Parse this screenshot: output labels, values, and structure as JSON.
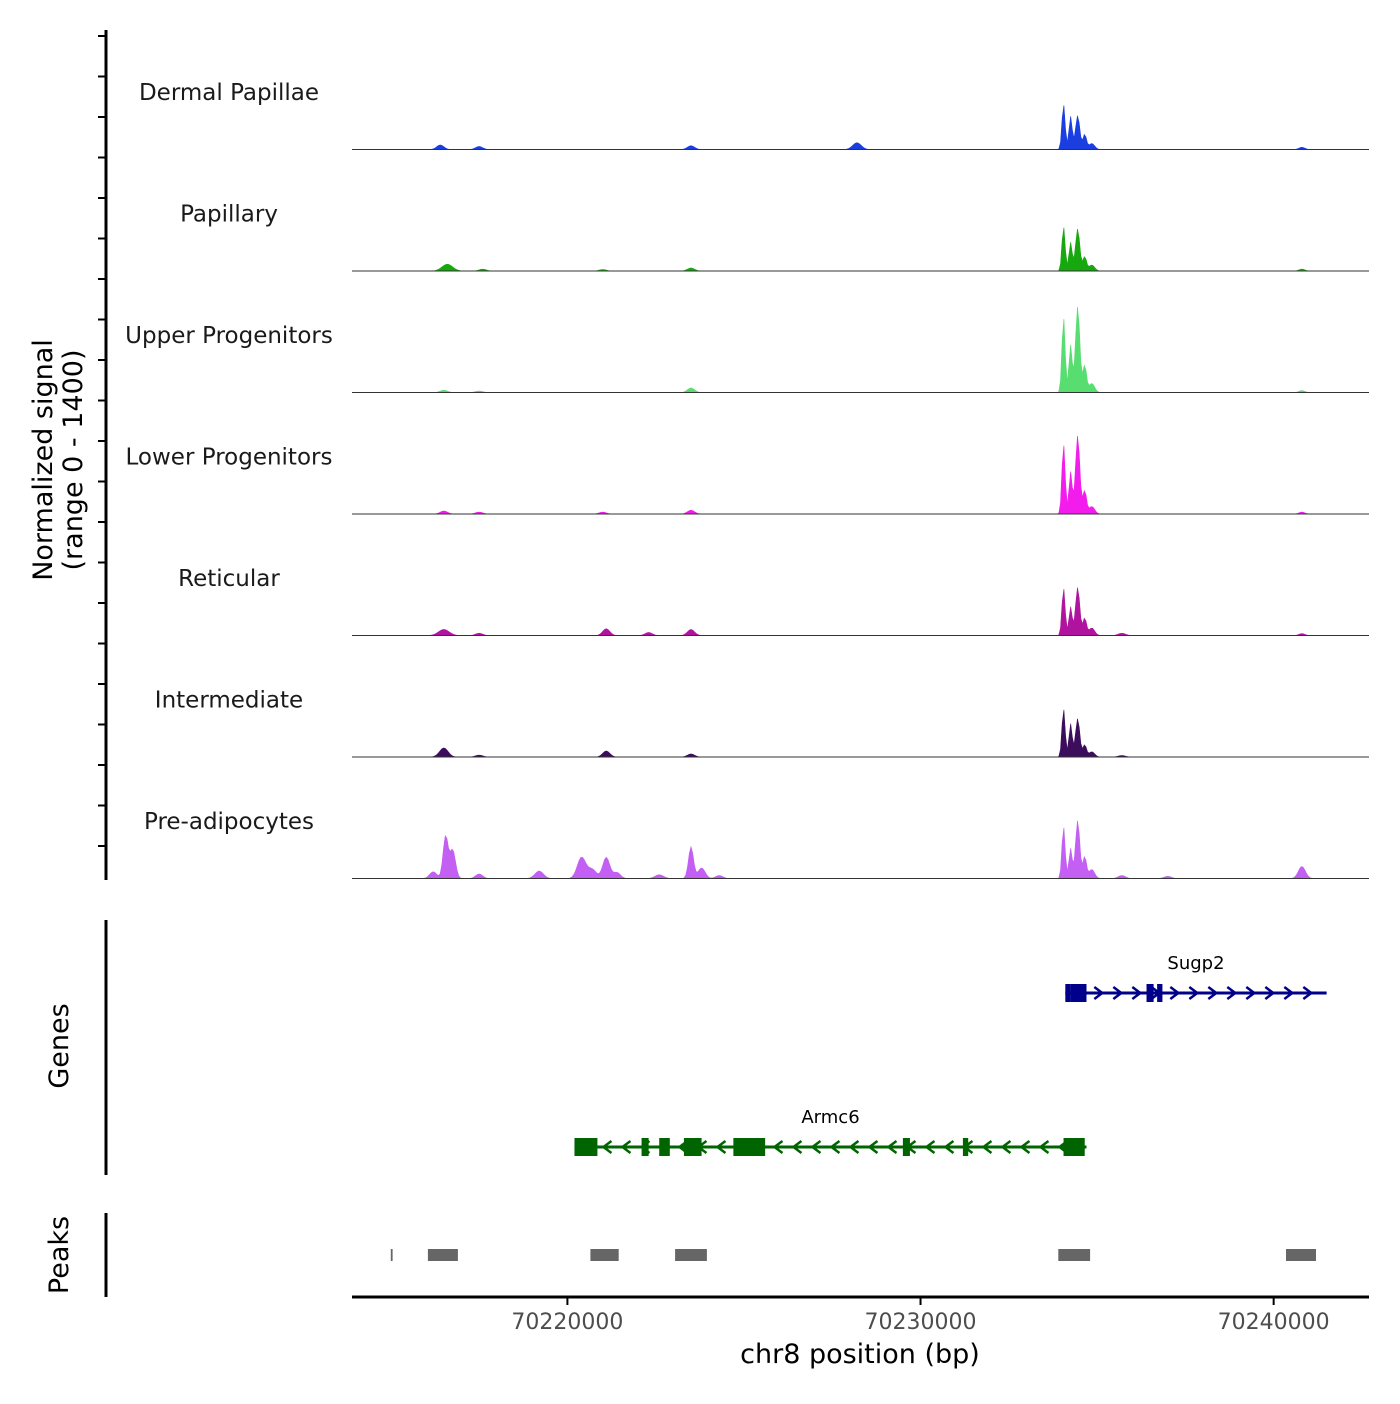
{
  "chart_data": {
    "type": "area",
    "chromosome": "chr8",
    "xlim": [
      70213900,
      70242700
    ],
    "ylim": [
      0,
      1400
    ],
    "ylabel": "Normalized signal",
    "ylabel_range": "(range 0 - 1400)",
    "xlabel": "chr8 position (bp)",
    "x_ticks": [
      70220000,
      70230000,
      70240000
    ],
    "x_tick_labels": [
      "70220000",
      "70230000",
      "70240000"
    ],
    "tracks": [
      {
        "name": "Dermal Papillae",
        "color": "#1a3ee0",
        "peaks": [
          [
            70216400,
            60,
            100
          ],
          [
            70217500,
            40,
            100
          ],
          [
            70223500,
            50,
            100
          ],
          [
            70228200,
            90,
            120
          ],
          [
            70234050,
            600,
            45
          ],
          [
            70234250,
            440,
            45
          ],
          [
            70234450,
            450,
            60
          ],
          [
            70234650,
            200,
            50
          ],
          [
            70234850,
            80,
            80
          ],
          [
            70240800,
            30,
            80
          ]
        ]
      },
      {
        "name": "Papillary",
        "color": "#17a80f",
        "peaks": [
          [
            70216600,
            90,
            150
          ],
          [
            70217600,
            25,
            100
          ],
          [
            70221000,
            20,
            100
          ],
          [
            70223500,
            40,
            100
          ],
          [
            70234050,
            590,
            45
          ],
          [
            70234250,
            380,
            45
          ],
          [
            70234450,
            560,
            60
          ],
          [
            70234650,
            190,
            50
          ],
          [
            70234850,
            80,
            80
          ],
          [
            70240800,
            25,
            80
          ]
        ]
      },
      {
        "name": "Upper Progenitors",
        "color": "#57dd70",
        "peaks": [
          [
            70216500,
            30,
            100
          ],
          [
            70217500,
            20,
            100
          ],
          [
            70223500,
            60,
            100
          ],
          [
            70234050,
            1000,
            45
          ],
          [
            70234250,
            630,
            45
          ],
          [
            70234450,
            1140,
            60
          ],
          [
            70234650,
            360,
            50
          ],
          [
            70234850,
            120,
            80
          ],
          [
            70240800,
            25,
            80
          ]
        ]
      },
      {
        "name": "Lower Progenitors",
        "color": "#f21cec",
        "peaks": [
          [
            70216500,
            40,
            100
          ],
          [
            70217500,
            25,
            100
          ],
          [
            70221000,
            25,
            100
          ],
          [
            70223500,
            50,
            100
          ],
          [
            70234050,
            930,
            45
          ],
          [
            70234250,
            560,
            45
          ],
          [
            70234450,
            1040,
            60
          ],
          [
            70234650,
            310,
            50
          ],
          [
            70234850,
            100,
            80
          ],
          [
            70240800,
            25,
            80
          ]
        ]
      },
      {
        "name": "Reticular",
        "color": "#b0149f",
        "peaks": [
          [
            70216500,
            80,
            150
          ],
          [
            70217500,
            30,
            100
          ],
          [
            70221100,
            90,
            100
          ],
          [
            70222300,
            40,
            100
          ],
          [
            70223500,
            80,
            100
          ],
          [
            70234050,
            630,
            45
          ],
          [
            70234250,
            380,
            45
          ],
          [
            70234450,
            640,
            60
          ],
          [
            70234650,
            230,
            50
          ],
          [
            70234850,
            100,
            80
          ],
          [
            70235700,
            30,
            100
          ],
          [
            70240800,
            25,
            80
          ]
        ]
      },
      {
        "name": "Intermediate",
        "color": "#3c0d5c",
        "peaks": [
          [
            70216500,
            120,
            120
          ],
          [
            70217500,
            25,
            100
          ],
          [
            70221100,
            80,
            100
          ],
          [
            70223500,
            40,
            100
          ],
          [
            70234050,
            640,
            45
          ],
          [
            70234250,
            440,
            45
          ],
          [
            70234450,
            510,
            60
          ],
          [
            70234650,
            160,
            50
          ],
          [
            70234850,
            70,
            80
          ],
          [
            70235700,
            20,
            100
          ]
        ]
      },
      {
        "name": "Pre-adipocytes",
        "color": "#c35ff2",
        "peaks": [
          [
            70216200,
            90,
            100
          ],
          [
            70216550,
            560,
            70
          ],
          [
            70216750,
            380,
            80
          ],
          [
            70217500,
            60,
            100
          ],
          [
            70219200,
            100,
            120
          ],
          [
            70220400,
            280,
            120
          ],
          [
            70220700,
            120,
            120
          ],
          [
            70221100,
            280,
            100
          ],
          [
            70221400,
            80,
            100
          ],
          [
            70222600,
            50,
            120
          ],
          [
            70223500,
            420,
            70
          ],
          [
            70223800,
            140,
            100
          ],
          [
            70224300,
            40,
            100
          ],
          [
            70234050,
            690,
            45
          ],
          [
            70234250,
            400,
            45
          ],
          [
            70234450,
            770,
            60
          ],
          [
            70234650,
            290,
            50
          ],
          [
            70234850,
            120,
            80
          ],
          [
            70235700,
            40,
            100
          ],
          [
            70237000,
            30,
            100
          ],
          [
            70240800,
            160,
            100
          ]
        ]
      }
    ],
    "genes_panel_label": "Genes",
    "genes": [
      {
        "name": "Sugp2",
        "strand": "+",
        "color": "#00008b",
        "start": 70234100,
        "end": 70241500,
        "exons": [
          [
            70234100,
            70234250
          ],
          [
            70234250,
            70234700
          ],
          [
            70236400,
            70236600
          ],
          [
            70236700,
            70236850
          ]
        ]
      },
      {
        "name": "Armc6",
        "strand": "-",
        "color": "#006400",
        "start": 70220200,
        "end": 70234700,
        "exons": [
          [
            70220200,
            70220850
          ],
          [
            70222100,
            70222300
          ],
          [
            70222600,
            70222900
          ],
          [
            70223300,
            70223800
          ],
          [
            70224700,
            70225600
          ],
          [
            70229500,
            70229700
          ],
          [
            70231200,
            70231350
          ],
          [
            70234050,
            70234650
          ]
        ]
      }
    ],
    "peaks_panel_label": "Peaks",
    "peak_regions": [
      [
        70215000,
        70215050
      ],
      [
        70216050,
        70216900
      ],
      [
        70220650,
        70221450
      ],
      [
        70223050,
        70223950
      ],
      [
        70233900,
        70234800
      ],
      [
        70240350,
        70241200
      ]
    ]
  }
}
